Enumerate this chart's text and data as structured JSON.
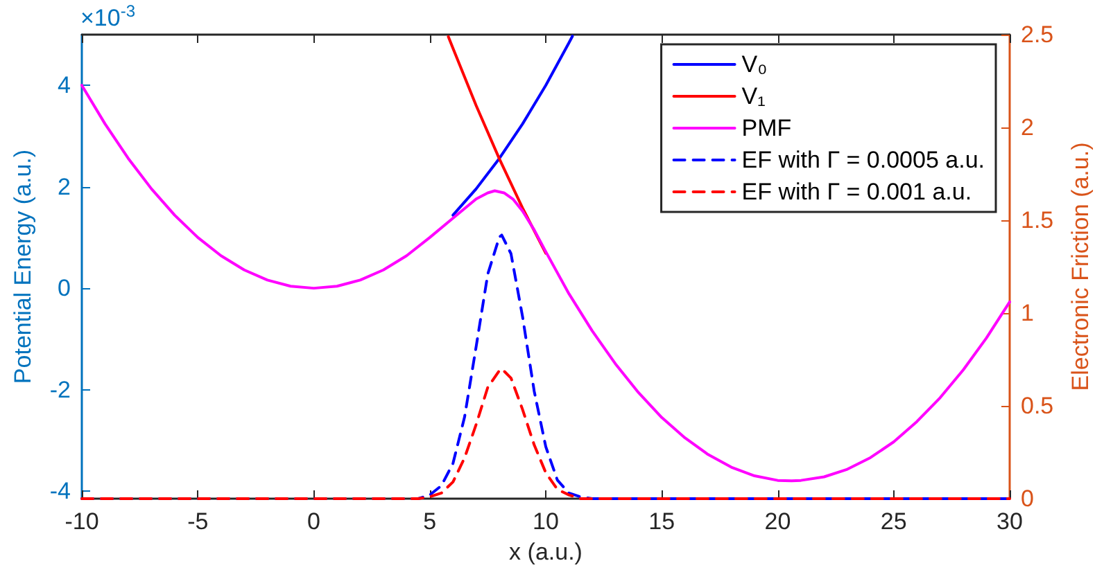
{
  "chart_data": {
    "type": "line",
    "xlabel": "x (a.u.)",
    "ylabel": "Potential Energy (a.u.)",
    "y2label": "Electronic Friction (a.u.)",
    "annotations": [
      "×10$^{-3}$"
    ],
    "xlim": [
      -10,
      30
    ],
    "xticks": [
      -10,
      -5,
      0,
      5,
      10,
      15,
      20,
      25,
      30
    ],
    "ylim": [
      -4.15,
      5
    ],
    "yticks": [
      -4,
      -2,
      0,
      2,
      4
    ],
    "y2lim": [
      0,
      2.5
    ],
    "y2ticks": [
      0,
      0.5,
      1,
      1.5,
      2,
      2.5
    ],
    "legend": "top right",
    "grid": false,
    "series": [
      {
        "name": "V₀",
        "color": "#0000ff",
        "line_style": "solid",
        "x": [
          6,
          7,
          8,
          9,
          10,
          11,
          11.15
        ],
        "values": [
          1.44,
          1.96,
          2.56,
          3.24,
          4,
          4.84,
          4.97
        ]
      },
      {
        "name": "V₁",
        "color": "#ff0000",
        "line_style": "solid",
        "x": [
          5.8,
          6,
          7,
          8,
          9,
          10
        ],
        "values": [
          4.96,
          4.73,
          3.6,
          2.55,
          1.58,
          0.69
        ]
      },
      {
        "name": "PMF",
        "color": "#ff00ff",
        "line_style": "solid",
        "x": [
          -10,
          -9,
          -8,
          -7,
          -6,
          -5,
          -4,
          -3,
          -2,
          -1,
          0,
          1,
          2,
          3,
          4,
          5,
          6,
          7,
          7.5,
          7.8,
          8.2,
          8.6,
          9,
          9.5,
          10,
          11,
          12,
          13,
          14,
          15,
          16,
          17,
          18,
          19,
          20,
          20.6,
          21,
          22,
          23,
          24,
          25,
          26,
          27,
          28,
          29,
          30
        ],
        "values": [
          4,
          3.24,
          2.56,
          1.96,
          1.44,
          1,
          0.64,
          0.36,
          0.16,
          0.04,
          0,
          0.04,
          0.16,
          0.36,
          0.64,
          1,
          1.38,
          1.76,
          1.88,
          1.92,
          1.88,
          1.75,
          1.52,
          1.15,
          0.72,
          -0.11,
          -0.84,
          -1.49,
          -2.06,
          -2.55,
          -2.95,
          -3.28,
          -3.53,
          -3.7,
          -3.79,
          -3.8,
          -3.79,
          -3.72,
          -3.57,
          -3.34,
          -3.03,
          -2.63,
          -2.16,
          -1.61,
          -0.98,
          -0.27
        ]
      },
      {
        "name": "EF with Γ = 0.0005 a.u.",
        "color": "#0000ff",
        "line_style": "dashed",
        "axis": "y2",
        "x": [
          -10,
          4.5,
          5,
          5.5,
          6,
          6.5,
          7,
          7.5,
          8,
          8.1,
          8.5,
          9,
          9.5,
          10,
          10.5,
          11,
          11.5,
          12,
          30
        ],
        "values": [
          0,
          0,
          0.02,
          0.07,
          0.19,
          0.44,
          0.82,
          1.21,
          1.41,
          1.42,
          1.32,
          0.98,
          0.58,
          0.28,
          0.1,
          0.03,
          0.01,
          0,
          0
        ]
      },
      {
        "name": "EF with Γ = 0.001 a.u.",
        "color": "#ff0000",
        "line_style": "dashed",
        "axis": "y2",
        "x": [
          -10,
          4.5,
          5,
          5.5,
          6,
          6.5,
          7,
          7.5,
          8,
          8.1,
          8.5,
          9,
          9.5,
          10,
          10.5,
          11,
          11.5,
          12,
          30
        ],
        "values": [
          0,
          0,
          0.01,
          0.03,
          0.09,
          0.22,
          0.4,
          0.6,
          0.69,
          0.7,
          0.65,
          0.48,
          0.29,
          0.14,
          0.05,
          0.02,
          0,
          0,
          0
        ]
      }
    ]
  }
}
